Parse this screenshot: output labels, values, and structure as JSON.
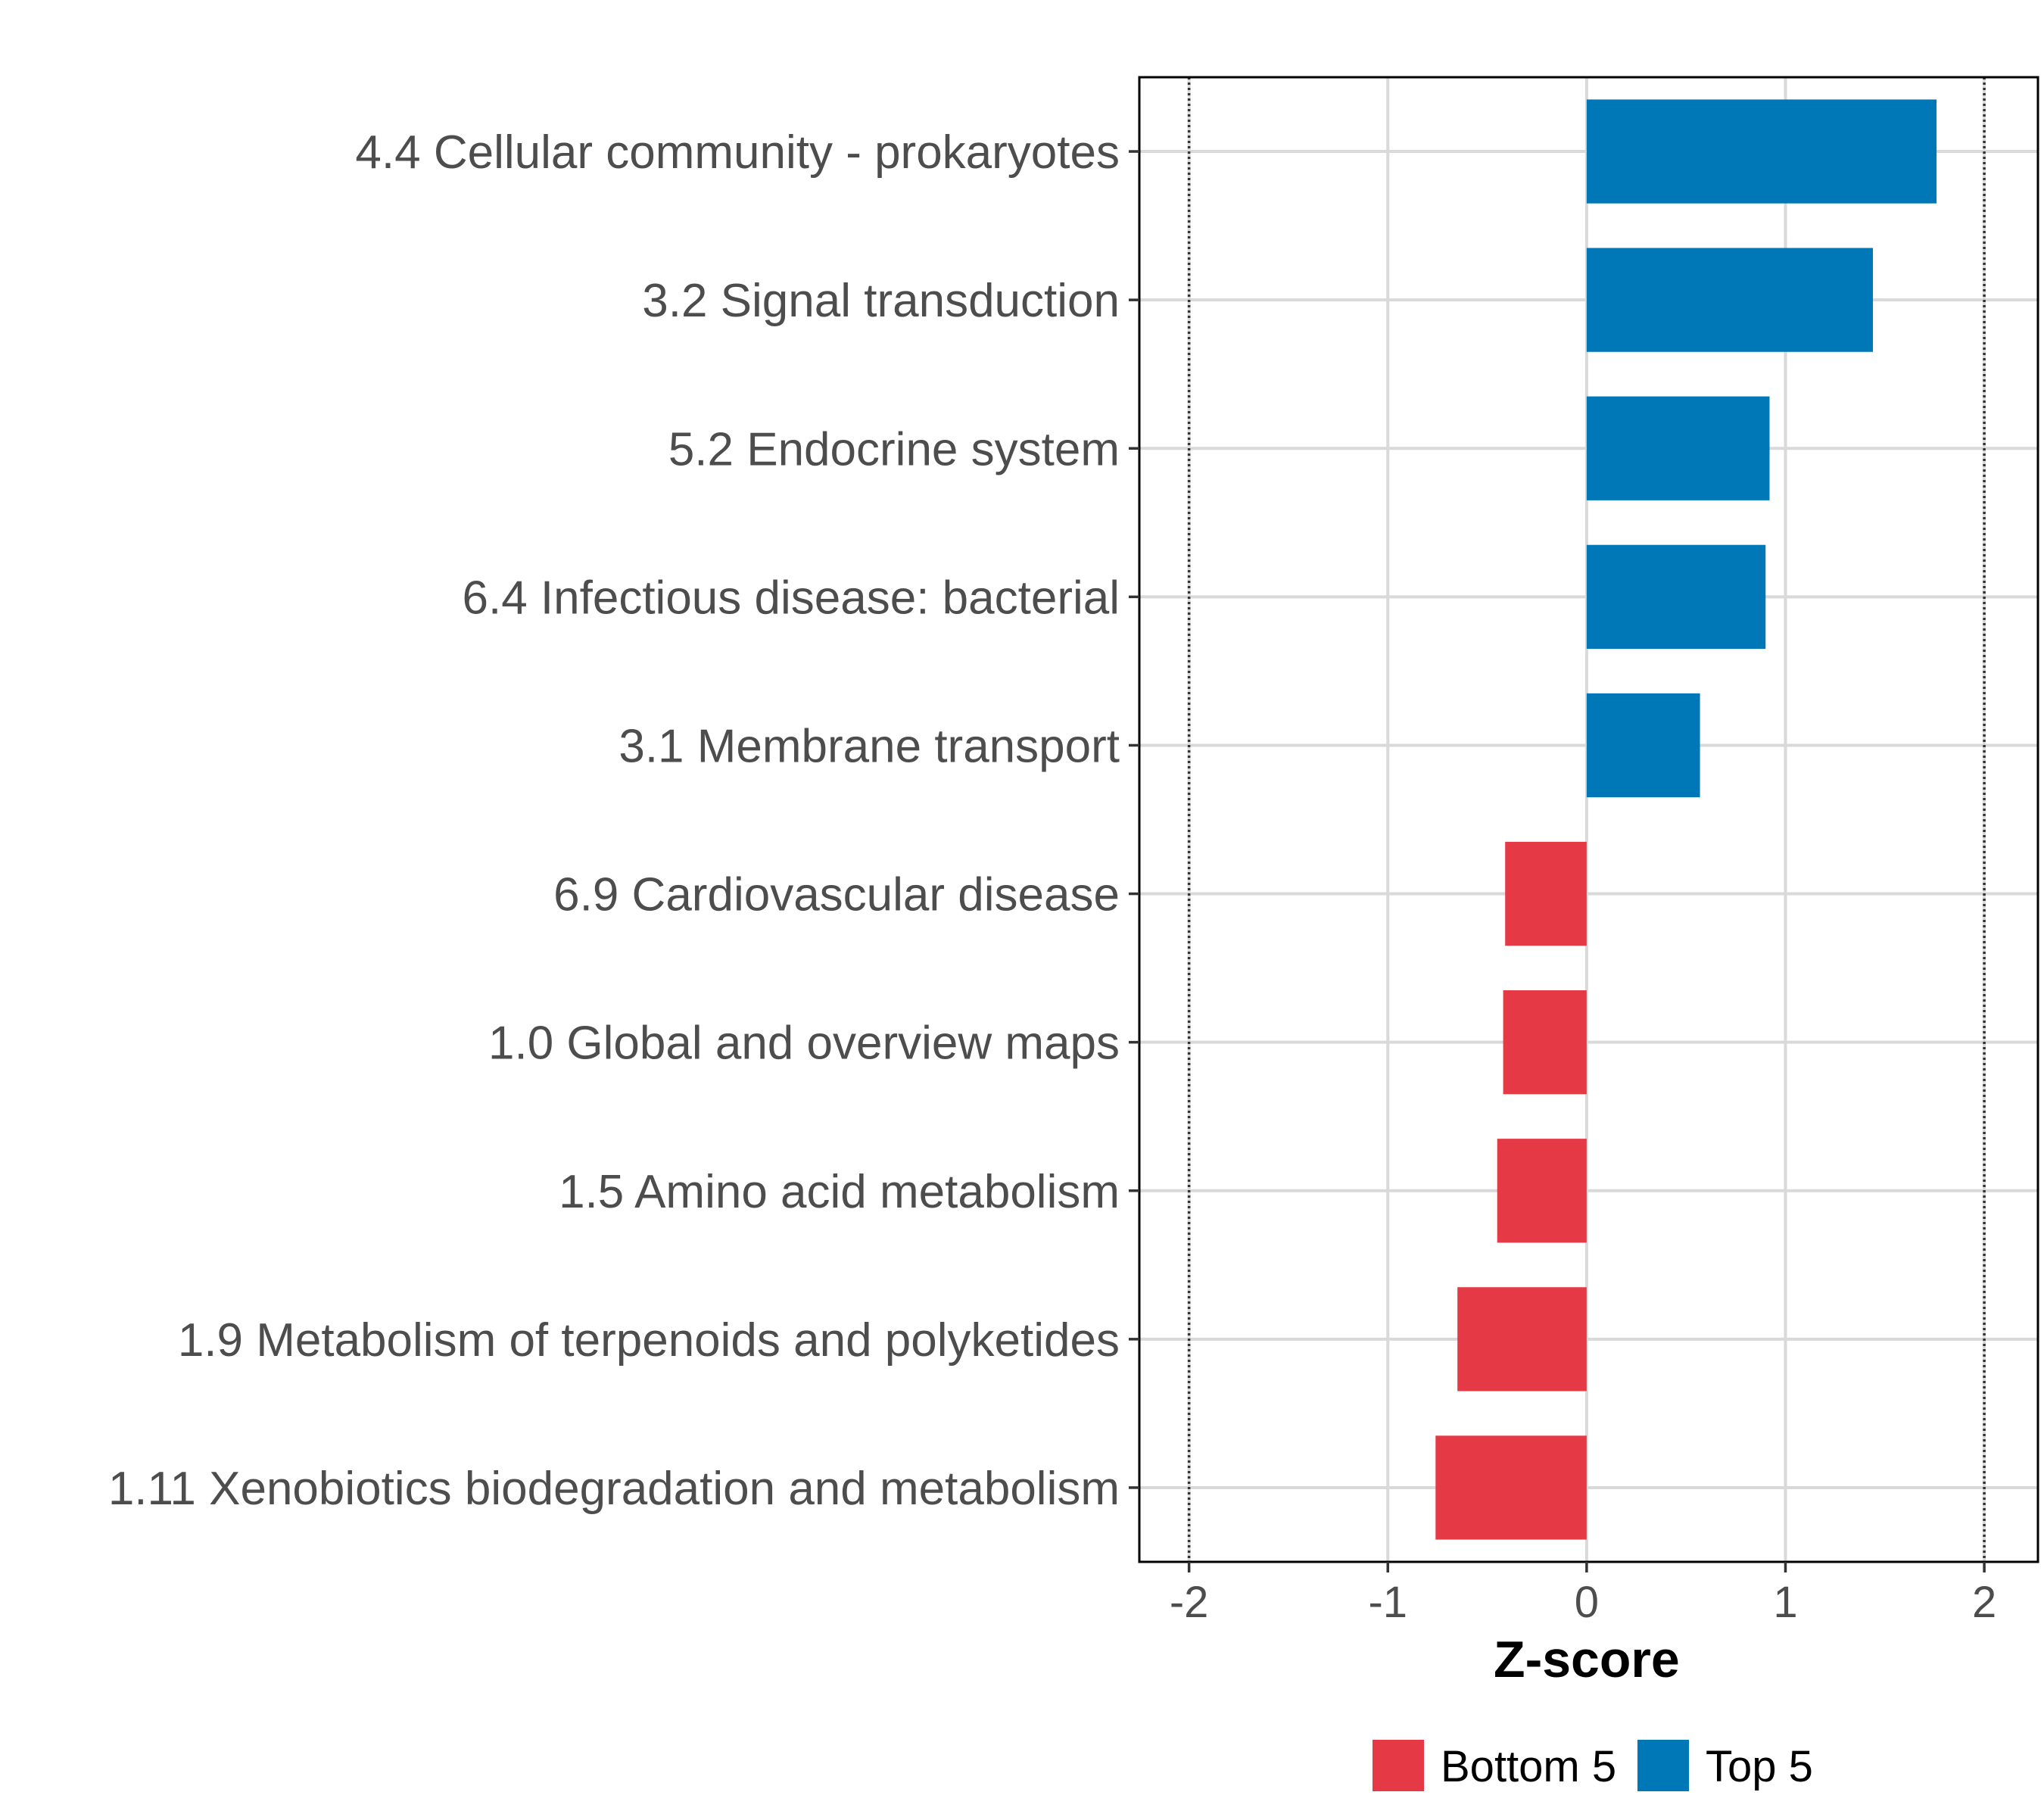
{
  "chart_data": {
    "type": "bar",
    "orientation": "horizontal",
    "categories": [
      "4.4 Cellular community - prokaryotes",
      "3.2 Signal transduction",
      "5.2 Endocrine system",
      "6.4 Infectious disease: bacterial",
      "3.1 Membrane transport",
      "6.9 Cardiovascular disease",
      "1.0 Global and overview maps",
      "1.5 Amino acid metabolism",
      "1.9 Metabolism of terpenoids and polyketides",
      "1.11 Xenobiotics biodegradation and metabolism"
    ],
    "values": [
      1.76,
      1.44,
      0.92,
      0.9,
      0.57,
      -0.41,
      -0.42,
      -0.45,
      -0.65,
      -0.76
    ],
    "groups": [
      "Top 5",
      "Top 5",
      "Top 5",
      "Top 5",
      "Top 5",
      "Bottom 5",
      "Bottom 5",
      "Bottom 5",
      "Bottom 5",
      "Bottom 5"
    ],
    "xlabel": "Z-score",
    "ylabel": "",
    "title": "",
    "xlim": [
      -2.25,
      2.27
    ],
    "xticks": [
      -2,
      -1,
      0,
      1,
      2
    ],
    "xtick_labels": [
      "-2",
      "-1",
      "0",
      "1",
      "2"
    ],
    "reference_lines": [
      -2,
      2
    ],
    "grid": true,
    "legend": {
      "position": "bottom",
      "entries": [
        {
          "label": "Bottom 5",
          "color": "#e63946"
        },
        {
          "label": "Top 5",
          "color": "#0077b6"
        }
      ]
    },
    "colors": {
      "Top 5": "#0077b6",
      "Bottom 5": "#e63946"
    }
  }
}
